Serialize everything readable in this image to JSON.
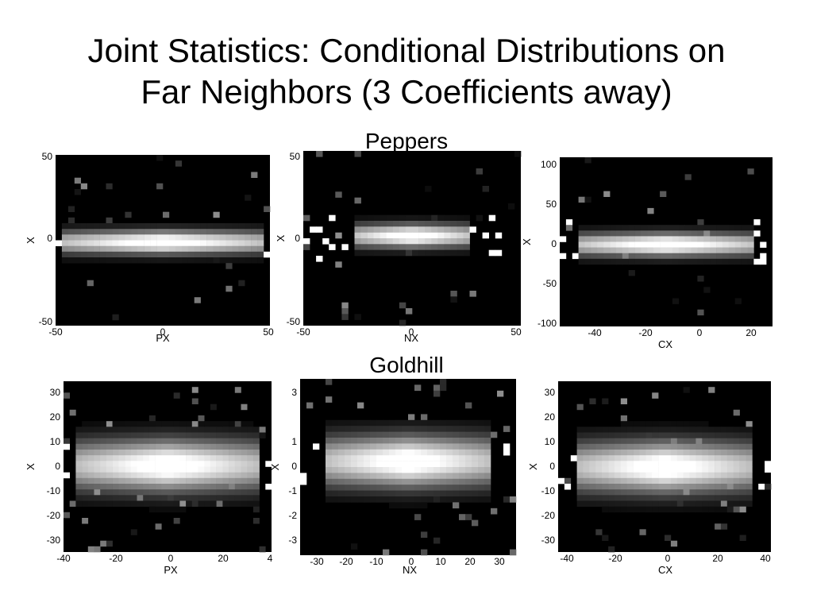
{
  "slide": {
    "title_line1": "Joint Statistics: Conditional Distributions on",
    "title_line2": "Far Neighbors (3 Coefficients away)"
  },
  "sections": [
    "Peppers",
    "Goldhill"
  ],
  "colors": {
    "background": "#000000",
    "high_density": "#ffffff",
    "text": "#000000"
  },
  "chart_data": [
    {
      "type": "heatmap",
      "image": "Peppers",
      "xlabel": "PX",
      "ylabel": "X",
      "xlim": [
        -50,
        50
      ],
      "ylim": [
        -50,
        50
      ],
      "xticks": [
        "-50",
        "0",
        "50"
      ],
      "yticks": [
        "50",
        "0",
        "-50"
      ],
      "description_value": "bright horizontal band centered at X=0 spanning full PX range"
    },
    {
      "type": "heatmap",
      "image": "Peppers",
      "xlabel": "NX",
      "ylabel": "X",
      "xlim": [
        -50,
        50
      ],
      "ylim": [
        -50,
        50
      ],
      "xticks": [
        "-50",
        "0",
        "50"
      ],
      "yticks": [
        "50",
        "0",
        "-50"
      ]
    },
    {
      "type": "heatmap",
      "image": "Peppers",
      "xlabel": "CX",
      "ylabel": "X",
      "xlim": [
        -55,
        28
      ],
      "ylim": [
        -100,
        100
      ],
      "xticks": [
        "-40",
        "-20",
        "0",
        "20"
      ],
      "yticks": [
        "100",
        "50",
        "0",
        "-50",
        "-100"
      ]
    },
    {
      "type": "heatmap",
      "image": "Goldhill",
      "xlabel": "PX",
      "ylabel": "X",
      "xlim": [
        -40,
        40
      ],
      "ylim": [
        -35,
        35
      ],
      "xticks": [
        "-40",
        "-20",
        "0",
        "20",
        "4"
      ],
      "yticks": [
        "30",
        "20",
        "10",
        "0",
        "-10",
        "-20",
        "-30"
      ]
    },
    {
      "type": "heatmap",
      "image": "Goldhill",
      "xlabel": "NX",
      "ylabel": "X",
      "xlim": [
        -36,
        35
      ],
      "ylim": [
        -35,
        35
      ],
      "xticks": [
        "-30",
        "-20",
        "-10",
        "0",
        "10",
        "20",
        "30"
      ],
      "yticks": [
        "3",
        "1",
        "0",
        "-1",
        "-2",
        "-3"
      ]
    },
    {
      "type": "heatmap",
      "image": "Goldhill",
      "xlabel": "CX",
      "ylabel": "X",
      "xlim": [
        -44,
        42
      ],
      "ylim": [
        -35,
        35
      ],
      "xticks": [
        "-40",
        "-20",
        "0",
        "20",
        "40"
      ],
      "yticks": [
        "30",
        "20",
        "10",
        "0",
        "-10",
        "-20",
        "-30"
      ]
    }
  ]
}
